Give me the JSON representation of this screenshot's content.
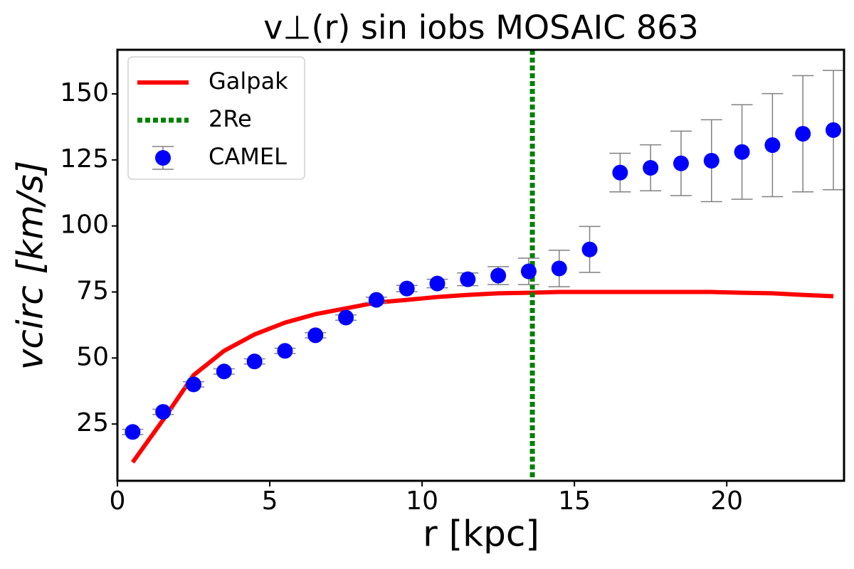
{
  "chart_data": {
    "type": "line",
    "title": "v⊥(r) sin iobs MOSAIC 863",
    "x_label": "r [kpc]",
    "y_label": "vcirc [km/s]",
    "xlim": [
      0,
      23.85
    ],
    "ylim": [
      3.5,
      166.7
    ],
    "xticks": [
      0,
      5,
      10,
      15,
      20
    ],
    "yticks": [
      25,
      50,
      75,
      100,
      125,
      150
    ],
    "legend": "upper left",
    "series": [
      {
        "name": "Galpak",
        "color": "#ff0000",
        "style": "line",
        "x": [
          0.5,
          1.5,
          2.5,
          3.5,
          4.5,
          5.5,
          6.5,
          7.5,
          8.5,
          9.5,
          10.5,
          11.5,
          12.5,
          13.5,
          14.5,
          15.5,
          16.5,
          17.5,
          18.5,
          19.5,
          20.5,
          21.5,
          22.5,
          23.5
        ],
        "values": [
          10.5,
          26.6,
          43.5,
          52.7,
          58.9,
          63.4,
          66.6,
          68.8,
          71.0,
          72.0,
          73.1,
          73.9,
          74.5,
          74.7,
          75.0,
          75.0,
          75.0,
          75.0,
          75.0,
          75.0,
          74.7,
          74.5,
          73.9,
          73.4
        ]
      },
      {
        "name": "2Re",
        "color": "#008000",
        "style": "vline",
        "x": 13.62
      },
      {
        "name": "CAMEL",
        "color": "#0000ff",
        "style": "errorbar",
        "error_color": "#808080",
        "x": [
          0.5,
          1.5,
          2.5,
          3.5,
          4.5,
          5.5,
          6.5,
          7.5,
          8.5,
          9.5,
          10.5,
          11.5,
          12.5,
          13.5,
          14.5,
          15.5,
          16.5,
          17.5,
          18.5,
          19.5,
          20.5,
          21.5,
          22.5,
          23.5
        ],
        "values": [
          22.0,
          29.6,
          40.0,
          44.9,
          48.7,
          52.7,
          58.6,
          65.3,
          72.0,
          76.3,
          78.2,
          79.8,
          81.2,
          82.8,
          83.9,
          91.1,
          120.2,
          122.0,
          123.7,
          124.7,
          128.0,
          130.6,
          134.9,
          136.3
        ],
        "errors": [
          1,
          1,
          1,
          1,
          1,
          1,
          1,
          1,
          1,
          1.2,
          1.6,
          2.4,
          3.4,
          5,
          6.9,
          8.7,
          7.3,
          8.7,
          12.2,
          15.5,
          17.9,
          19.5,
          22,
          22.6
        ]
      }
    ]
  }
}
